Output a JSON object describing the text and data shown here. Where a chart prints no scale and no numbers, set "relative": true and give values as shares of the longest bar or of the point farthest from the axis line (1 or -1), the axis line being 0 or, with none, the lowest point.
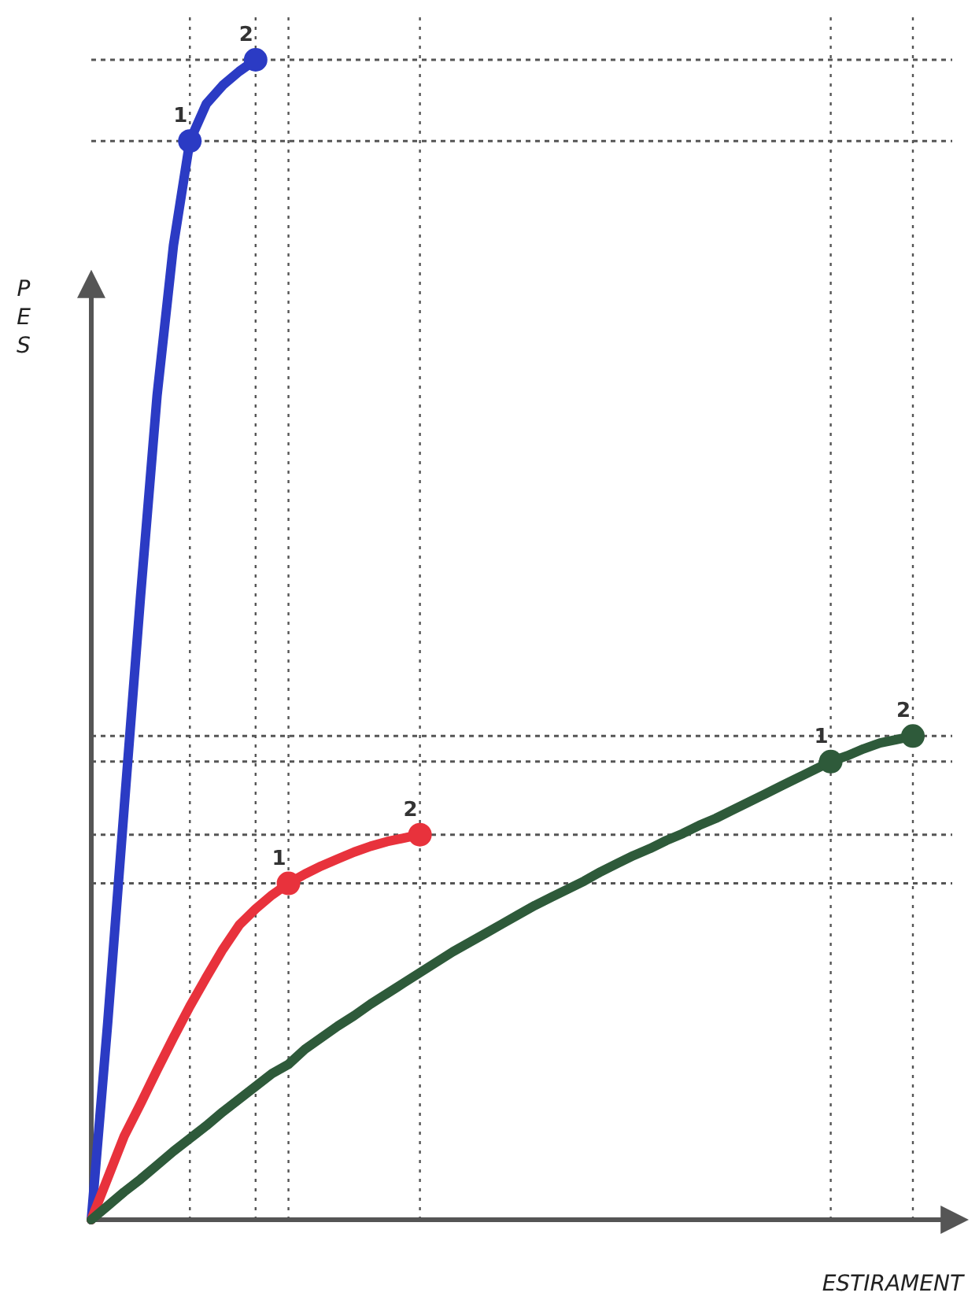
{
  "chart_data": {
    "type": "line",
    "relative": true,
    "xlabel": "ESTIRAMENT",
    "ylabel": "PES",
    "line_style": "solid",
    "grid": "x",
    "categories": [
      null,
      null,
      null,
      null,
      null,
      null,
      null,
      null,
      null,
      null,
      null,
      null,
      null,
      null,
      null,
      null,
      null,
      null,
      null,
      null,
      null,
      null,
      null,
      null,
      null,
      null,
      null,
      null,
      null,
      null,
      null,
      null,
      null,
      null,
      null,
      null,
      null,
      null,
      null,
      null,
      null,
      null,
      null,
      null,
      null,
      null,
      null,
      null,
      null,
      null,
      null
    ],
    "series": [
      {
        "color": "#2b3bc4",
        "values": [
          0,
          0.17,
          0.355,
          0.538,
          0.71,
          0.84,
          0.93,
          0.962,
          0.978,
          0.99,
          1,
          null,
          null,
          null,
          null,
          null,
          null,
          null,
          null,
          null,
          null,
          null,
          null,
          null,
          null,
          null,
          null,
          null,
          null,
          null,
          null,
          null,
          null,
          null,
          null,
          null,
          null,
          null,
          null,
          null,
          null,
          null,
          null,
          null,
          null,
          null,
          null,
          null,
          null,
          null,
          null
        ]
      },
      {
        "color": "#e8323c",
        "values": [
          0,
          0.036,
          0.072,
          0.1,
          0.129,
          0.157,
          0.184,
          0.209,
          0.233,
          0.254,
          0.268,
          0.28,
          0.29,
          0.298,
          0.305,
          0.311,
          0.317,
          0.322,
          0.326,
          0.329,
          0.332,
          null,
          null,
          null,
          null,
          null,
          null,
          null,
          null,
          null,
          null,
          null,
          null,
          null,
          null,
          null,
          null,
          null,
          null,
          null,
          null,
          null,
          null,
          null,
          null,
          null,
          null,
          null,
          null,
          null,
          null
        ]
      },
      {
        "color": "#2e5a3a",
        "values": [
          0,
          0.012,
          0.024,
          0.035,
          0.047,
          0.059,
          0.07,
          0.081,
          0.093,
          0.104,
          0.115,
          0.126,
          0.134,
          0.147,
          0.157,
          0.167,
          0.176,
          0.186,
          0.195,
          0.204,
          0.213,
          0.222,
          0.231,
          0.239,
          0.247,
          0.255,
          0.263,
          0.271,
          0.278,
          0.285,
          0.292,
          0.3,
          0.307,
          0.314,
          0.32,
          0.327,
          0.333,
          0.34,
          0.346,
          0.353,
          0.36,
          0.367,
          0.374,
          0.381,
          0.388,
          0.395,
          0.4,
          0.406,
          0.411,
          0.414,
          0.417
        ]
      }
    ],
    "ref_lines": [
      {
        "axis": "y",
        "value": 0.93,
        "color": "#555555",
        "line_style": "dotted"
      },
      {
        "axis": "y",
        "value": 1,
        "color": "#555555",
        "line_style": "dotted"
      },
      {
        "axis": "y",
        "value": 0.29,
        "color": "#555555",
        "line_style": "dotted"
      },
      {
        "axis": "y",
        "value": 0.332,
        "color": "#555555",
        "line_style": "dotted"
      },
      {
        "axis": "y",
        "value": 0.395,
        "color": "#555555",
        "line_style": "dotted"
      },
      {
        "axis": "y",
        "value": 0.417,
        "color": "#555555",
        "line_style": "dotted"
      }
    ],
    "annotations": [
      {
        "text": "1",
        "y": 0.93
      },
      {
        "text": "2",
        "y": 1
      },
      {
        "text": "1",
        "y": 0.29
      },
      {
        "text": "2",
        "y": 0.332
      },
      {
        "text": "1",
        "y": 0.395
      },
      {
        "text": "2",
        "y": 0.417
      }
    ]
  }
}
